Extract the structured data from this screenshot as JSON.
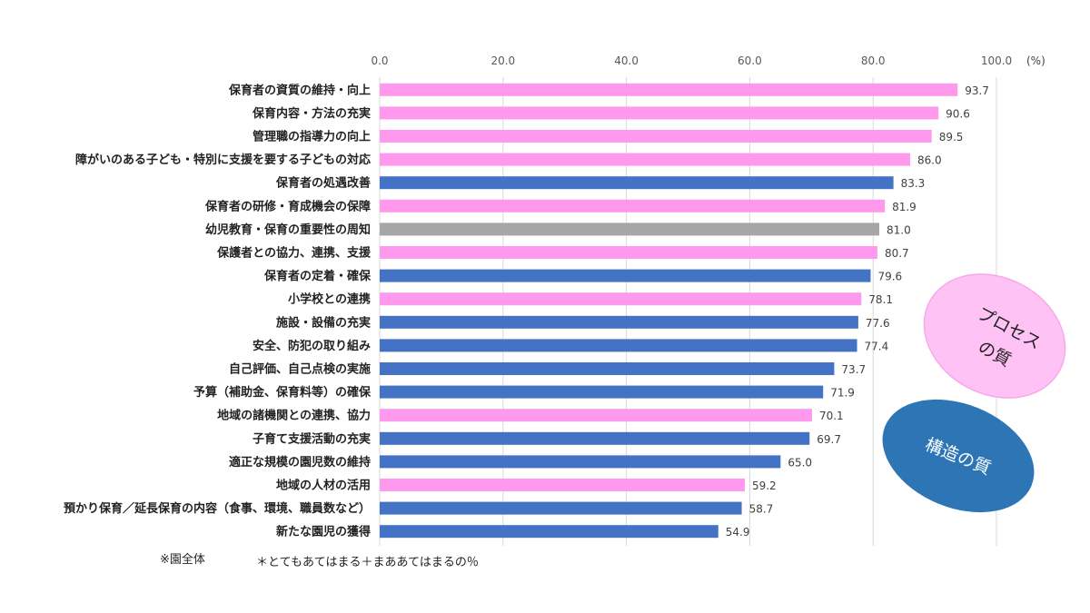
{
  "chart_data": {
    "type": "bar",
    "orientation": "horizontal",
    "unit_label": "(%)",
    "xlim": [
      0,
      100
    ],
    "x_ticks": [
      "0.0",
      "20.0",
      "40.0",
      "60.0",
      "80.0",
      "100.0"
    ],
    "grid": true,
    "categories": [
      "保育者の資質の維持・向上",
      "保育内容・方法の充実",
      "管理職の指導力の向上",
      "障がいのある子ども・特別に支援を要する子どもの対応",
      "保育者の処遇改善",
      "保育者の研修・育成機会の保障",
      "幼児教育・保育の重要性の周知",
      "保護者との協力、連携、支援",
      "保育者の定着・確保",
      "小学校との連携",
      "施設・設備の充実",
      "安全、防犯の取り組み",
      "自己評価、自己点検の実施",
      "予算（補助金、保育料等）の確保",
      "地域の諸機関との連携、協力",
      "子育て支援活動の充実",
      "適正な規模の園児数の維持",
      "地域の人材の活用",
      "預かり保育／延長保育の内容（食事、環境、職員数など）",
      "新たな園児の獲得"
    ],
    "values": [
      93.7,
      90.6,
      89.5,
      86.0,
      83.3,
      81.9,
      81.0,
      80.7,
      79.6,
      78.1,
      77.6,
      77.4,
      73.7,
      71.9,
      70.1,
      69.7,
      65.0,
      59.2,
      58.7,
      54.9
    ],
    "value_labels": [
      "93.7",
      "90.6",
      "89.5",
      "86.0",
      "83.3",
      "81.9",
      "81.0",
      "80.7",
      "79.6",
      "78.1",
      "77.6",
      "77.4",
      "73.7",
      "71.9",
      "70.1",
      "69.7",
      "65.0",
      "59.2",
      "58.7",
      "54.9"
    ],
    "bar_groups": [
      "process",
      "process",
      "process",
      "process",
      "structure",
      "process",
      "other",
      "process",
      "structure",
      "process",
      "structure",
      "structure",
      "structure",
      "structure",
      "process",
      "structure",
      "structure",
      "process",
      "structure",
      "structure"
    ],
    "colors": {
      "process": "#ff99ee",
      "structure": "#4472c4",
      "other": "#a6a6a6",
      "grid": "#d9d9d9"
    }
  },
  "annotations": {
    "process_bubble": {
      "lines": [
        "プロセス",
        "の質"
      ],
      "fill": "#ffc2f5",
      "stroke": "#f7a8ec"
    },
    "structure_bubble": {
      "text": "構造の質",
      "fill": "#2e75b6"
    }
  },
  "notes": {
    "scope": "※園全体",
    "formula": "＊とてもあてはまる＋まああてはまるの％"
  }
}
